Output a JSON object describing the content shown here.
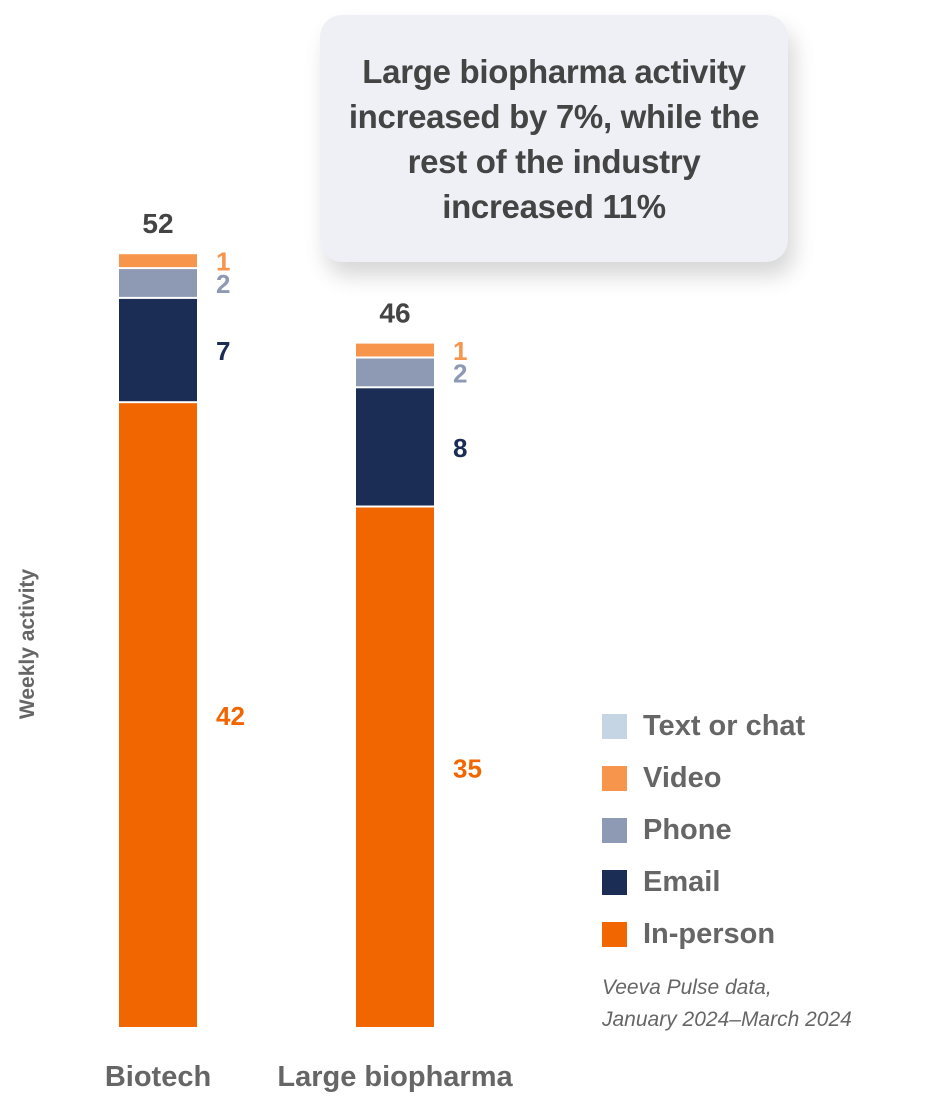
{
  "callout": {
    "text": "Large biopharma activity increased by 7%, while the rest of the industry increased 11%"
  },
  "source": {
    "line1": "Veeva Pulse data,",
    "line2": "January 2024–March 2024"
  },
  "chart_data": {
    "type": "bar",
    "stacked": true,
    "ylabel": "Weekly activity",
    "categories": [
      "Biotech",
      "Large biopharma"
    ],
    "totals": [
      52,
      46
    ],
    "series": [
      {
        "name": "In-person",
        "values": [
          42,
          35
        ],
        "color": "#f26600"
      },
      {
        "name": "Email",
        "values": [
          7,
          8
        ],
        "color": "#1b2d55"
      },
      {
        "name": "Phone",
        "values": [
          2,
          2
        ],
        "color": "#8e9ab3"
      },
      {
        "name": "Video",
        "values": [
          1,
          1
        ],
        "color": "#f7954c"
      },
      {
        "name": "Text or chat",
        "values": [
          0,
          0
        ],
        "color": "#c5d5e3"
      }
    ],
    "legend_order": [
      "Text or chat",
      "Video",
      "Phone",
      "Email",
      "In-person"
    ],
    "legend_position": "right",
    "grid": false
  }
}
